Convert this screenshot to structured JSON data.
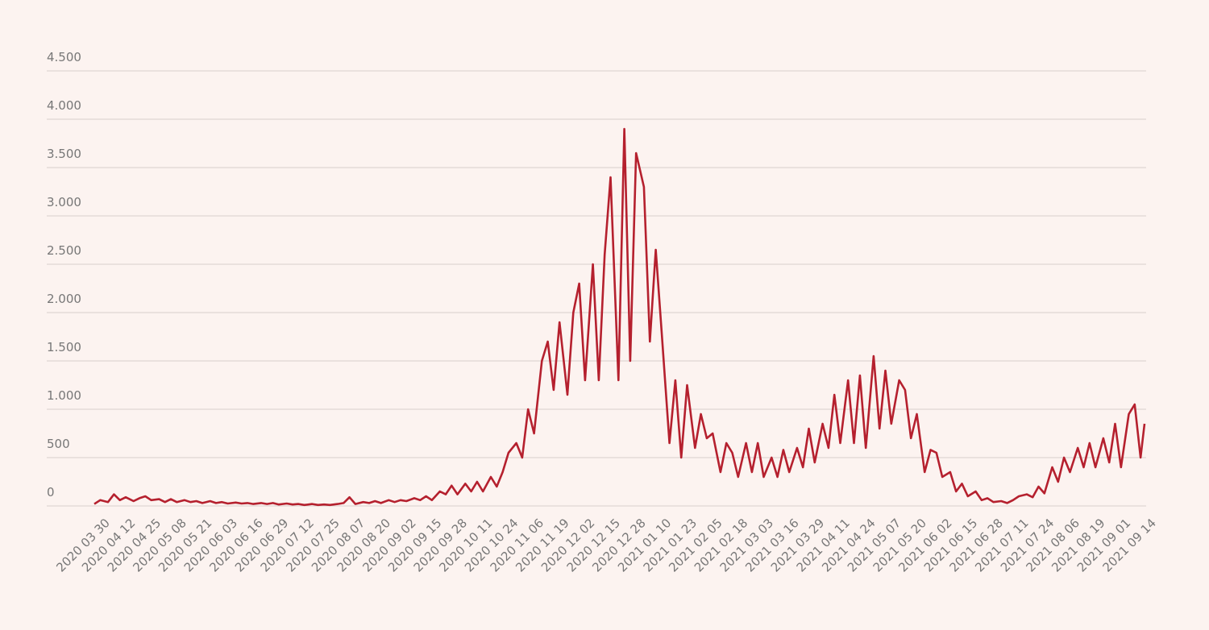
{
  "chart_data": {
    "type": "line",
    "x": [
      "2020 03 30",
      "2020 04 02",
      "2020 04 06",
      "2020 04 09",
      "2020 04 12",
      "2020 04 15",
      "2020 04 19",
      "2020 04 22",
      "2020 04 25",
      "2020 04 28",
      "2020 05 02",
      "2020 05 05",
      "2020 05 08",
      "2020 05 11",
      "2020 05 15",
      "2020 05 18",
      "2020 05 21",
      "2020 05 24",
      "2020 05 28",
      "2020 05 31",
      "2020 06 03",
      "2020 06 06",
      "2020 06 10",
      "2020 06 13",
      "2020 06 16",
      "2020 06 19",
      "2020 06 23",
      "2020 06 26",
      "2020 06 29",
      "2020 07 02",
      "2020 07 06",
      "2020 07 09",
      "2020 07 12",
      "2020 07 15",
      "2020 07 19",
      "2020 07 22",
      "2020 07 25",
      "2020 07 28",
      "2020 08 01",
      "2020 08 04",
      "2020 08 07",
      "2020 08 10",
      "2020 08 14",
      "2020 08 17",
      "2020 08 20",
      "2020 08 23",
      "2020 08 27",
      "2020 08 30",
      "2020 09 02",
      "2020 09 05",
      "2020 09 09",
      "2020 09 12",
      "2020 09 15",
      "2020 09 18",
      "2020 09 22",
      "2020 09 25",
      "2020 09 28",
      "2020 10 01",
      "2020 10 05",
      "2020 10 08",
      "2020 10 11",
      "2020 10 14",
      "2020 10 18",
      "2020 10 21",
      "2020 10 24",
      "2020 10 27",
      "2020 10 31",
      "2020 11 03",
      "2020 11 06",
      "2020 11 09",
      "2020 11 13",
      "2020 11 16",
      "2020 11 19",
      "2020 11 22",
      "2020 11 26",
      "2020 11 29",
      "2020 12 02",
      "2020 12 05",
      "2020 12 09",
      "2020 12 12",
      "2020 12 15",
      "2020 12 18",
      "2020 12 22",
      "2020 12 25",
      "2020 12 28",
      "2020 12 31",
      "2021 01 04",
      "2021 01 07",
      "2021 01 10",
      "2021 01 13",
      "2021 01 17",
      "2021 01 20",
      "2021 01 23",
      "2021 01 26",
      "2021 01 30",
      "2021 02 02",
      "2021 02 05",
      "2021 02 08",
      "2021 02 12",
      "2021 02 15",
      "2021 02 18",
      "2021 02 21",
      "2021 02 25",
      "2021 02 28",
      "2021 03 03",
      "2021 03 06",
      "2021 03 10",
      "2021 03 13",
      "2021 03 16",
      "2021 03 19",
      "2021 03 23",
      "2021 03 26",
      "2021 03 29",
      "2021 04 01",
      "2021 04 05",
      "2021 04 08",
      "2021 04 11",
      "2021 04 14",
      "2021 04 18",
      "2021 04 21",
      "2021 04 24",
      "2021 04 27",
      "2021 05 01",
      "2021 05 04",
      "2021 05 07",
      "2021 05 10",
      "2021 05 14",
      "2021 05 17",
      "2021 05 20",
      "2021 05 23",
      "2021 05 27",
      "2021 05 30",
      "2021 06 02",
      "2021 06 05",
      "2021 06 09",
      "2021 06 12",
      "2021 06 15",
      "2021 06 18",
      "2021 06 22",
      "2021 06 25",
      "2021 06 28",
      "2021 07 01",
      "2021 07 05",
      "2021 07 08",
      "2021 07 11",
      "2021 07 14",
      "2021 07 18",
      "2021 07 21",
      "2021 07 24",
      "2021 07 27",
      "2021 07 31",
      "2021 08 03",
      "2021 08 06",
      "2021 08 09",
      "2021 08 13",
      "2021 08 16",
      "2021 08 19",
      "2021 08 22",
      "2021 08 26",
      "2021 08 29",
      "2021 09 01",
      "2021 09 04",
      "2021 09 08",
      "2021 09 11",
      "2021 09 14",
      "2021 09 16"
    ],
    "series": [
      {
        "color": "#b5202e",
        "values": [
          20,
          60,
          40,
          120,
          60,
          90,
          50,
          80,
          100,
          60,
          70,
          40,
          70,
          40,
          60,
          40,
          50,
          30,
          50,
          30,
          40,
          25,
          35,
          25,
          30,
          20,
          30,
          20,
          30,
          15,
          25,
          15,
          20,
          10,
          20,
          10,
          15,
          10,
          20,
          30,
          90,
          20,
          40,
          30,
          50,
          30,
          60,
          40,
          60,
          50,
          80,
          60,
          100,
          60,
          150,
          120,
          210,
          120,
          230,
          150,
          250,
          150,
          300,
          200,
          350,
          550,
          650,
          500,
          1000,
          750,
          1500,
          1700,
          1200,
          1900,
          1150,
          2000,
          2300,
          1300,
          2500,
          1300,
          2600,
          3400,
          1300,
          3900,
          1500,
          3650,
          3300,
          1700,
          2650,
          1800,
          650,
          1300,
          500,
          1250,
          600,
          950,
          700,
          750,
          350,
          650,
          550,
          300,
          650,
          350,
          650,
          300,
          500,
          300,
          580,
          350,
          600,
          400,
          800,
          450,
          850,
          600,
          1150,
          650,
          1300,
          650,
          1350,
          600,
          1550,
          800,
          1400,
          850,
          1300,
          1200,
          700,
          950,
          350,
          580,
          550,
          300,
          350,
          150,
          230,
          100,
          150,
          60,
          80,
          40,
          50,
          30,
          60,
          100,
          120,
          90,
          200,
          130,
          400,
          250,
          500,
          350,
          600,
          400,
          650,
          400,
          700,
          450,
          850,
          400,
          950,
          1050,
          500,
          850
        ]
      }
    ],
    "xticks": [
      "2020 03 30",
      "2020 04 12",
      "2020 04 25",
      "2020 05 08",
      "2020 05 21",
      "2020 06 03",
      "2020 06 16",
      "2020 06 29",
      "2020 07 12",
      "2020 07 25",
      "2020 08 07",
      "2020 08 20",
      "2020 09 02",
      "2020 09 15",
      "2020 09 28",
      "2020 10 11",
      "2020 10 24",
      "2020 11 06",
      "2020 11 19",
      "2020 12 02",
      "2020 12 15",
      "2020 12 28",
      "2021 01 10",
      "2021 01 23",
      "2021 02 05",
      "2021 02 18",
      "2021 03 03",
      "2021 03 16",
      "2021 03 29",
      "2021 04 11",
      "2021 04 24",
      "2021 05 07",
      "2021 05 20",
      "2021 06 02",
      "2021 06 15",
      "2021 06 28",
      "2021 07 11",
      "2021 07 24",
      "2021 08 06",
      "2021 08 19",
      "2021 09 01",
      "2021 09 14"
    ],
    "ylim": [
      0,
      4500
    ],
    "yticks": [
      0,
      500,
      {
        "value": 1000,
        "label": "1.000"
      },
      {
        "value": 1500,
        "label": "1.500"
      },
      {
        "value": 2000,
        "label": "2.000"
      },
      {
        "value": 2500,
        "label": "2.500"
      },
      {
        "value": 3000,
        "label": "3.000"
      },
      {
        "value": 3500,
        "label": "3.500"
      },
      {
        "value": 4000,
        "label": "4.000"
      },
      {
        "value": 4500,
        "label": "4.500"
      }
    ],
    "grid": true
  }
}
